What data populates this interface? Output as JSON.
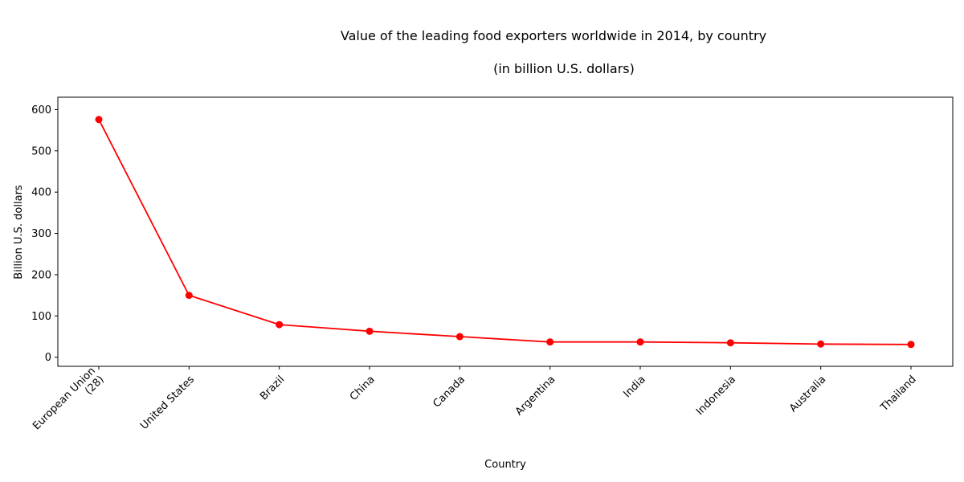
{
  "chart_data": {
    "type": "line",
    "title": "Value of the leading food exporters worldwide in 2014, by country",
    "subtitle": "(in billion U.S. dollars)",
    "xlabel": "Country",
    "ylabel": "Billion U.S. dollars",
    "categories": [
      [
        "European Union",
        "(28)"
      ],
      [
        "United States"
      ],
      [
        "Brazil"
      ],
      [
        "China"
      ],
      [
        "Canada"
      ],
      [
        "Argentina"
      ],
      [
        "India"
      ],
      [
        "Indonesia"
      ],
      [
        "Australia"
      ],
      [
        "Thailand"
      ]
    ],
    "values": [
      576,
      150,
      79,
      63,
      50,
      37,
      37,
      35,
      32,
      31
    ],
    "ylim": [
      -22,
      630
    ],
    "yticks": [
      0,
      100,
      200,
      300,
      400,
      500,
      600
    ],
    "grid": false,
    "color": "#ff0000"
  }
}
